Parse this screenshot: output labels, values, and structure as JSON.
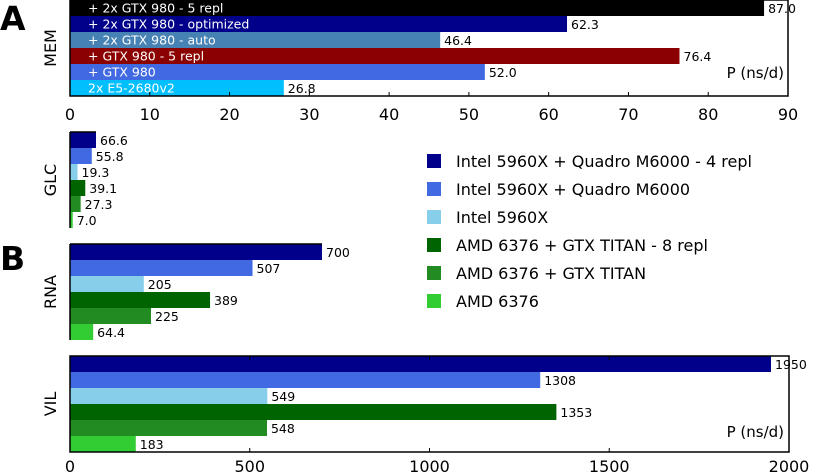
{
  "chart_data": [
    {
      "type": "bar",
      "orientation": "horizontal",
      "panel_letter": "A",
      "row_label": "MEM",
      "xlabel": "P (ns/d)",
      "xlim": [
        0,
        90
      ],
      "xticks": [
        "0",
        "10",
        "20",
        "30",
        "40",
        "50",
        "60",
        "70",
        "80",
        "90"
      ],
      "categories": [
        "+ 2x GTX 980 - 5 repl",
        "+ 2x GTX 980 - optimized",
        "+ 2x GTX 980 - auto",
        "+ GTX 980 - 5 repl",
        "+ GTX 980",
        "2x E5-2680v2"
      ],
      "values": [
        87.0,
        62.3,
        46.4,
        76.4,
        52.0,
        26.8
      ],
      "value_labels": [
        "87.0",
        "62.3",
        "46.4",
        "76.4",
        "52.0",
        "26.8"
      ],
      "colors": [
        "#000000",
        "#00008b",
        "#4682b4",
        "#8b0000",
        "#4169e1",
        "#00bfff"
      ]
    },
    {
      "type": "bar",
      "orientation": "horizontal",
      "panel_letter": "B",
      "row_label": "GLC",
      "values": [
        66.6,
        55.8,
        19.3,
        39.1,
        27.3,
        7.0
      ],
      "value_labels": [
        "66.6",
        "55.8",
        "19.3",
        "39.1",
        "27.3",
        "7.0"
      ]
    },
    {
      "type": "bar",
      "orientation": "horizontal",
      "row_label": "RNA",
      "values": [
        700,
        507,
        205,
        389,
        225,
        64.4
      ],
      "value_labels": [
        "700",
        "507",
        "205",
        "389",
        "225",
        "64.4"
      ]
    },
    {
      "type": "bar",
      "orientation": "horizontal",
      "row_label": "VIL",
      "xlabel": "P (ns/d)",
      "xlim": [
        0,
        2000
      ],
      "xticks": [
        "0",
        "500",
        "1000",
        "1500",
        "2000"
      ],
      "values": [
        1950,
        1308,
        549,
        1353,
        548,
        183
      ],
      "value_labels": [
        "1950",
        "1308",
        "549",
        "1353",
        "548",
        "183"
      ]
    }
  ],
  "legend": {
    "placement": "right",
    "items": [
      {
        "label": "Intel 5960X + Quadro M6000 - 4 repl",
        "color": "#00008b"
      },
      {
        "label": "Intel 5960X + Quadro M6000",
        "color": "#4169e1"
      },
      {
        "label": "Intel 5960X",
        "color": "#87ceeb"
      },
      {
        "label": "AMD 6376 + GTX TITAN - 8 repl",
        "color": "#006400"
      },
      {
        "label": "AMD 6376 + GTX TITAN",
        "color": "#228b22"
      },
      {
        "label": "AMD 6376",
        "color": "#32cd32"
      }
    ]
  }
}
